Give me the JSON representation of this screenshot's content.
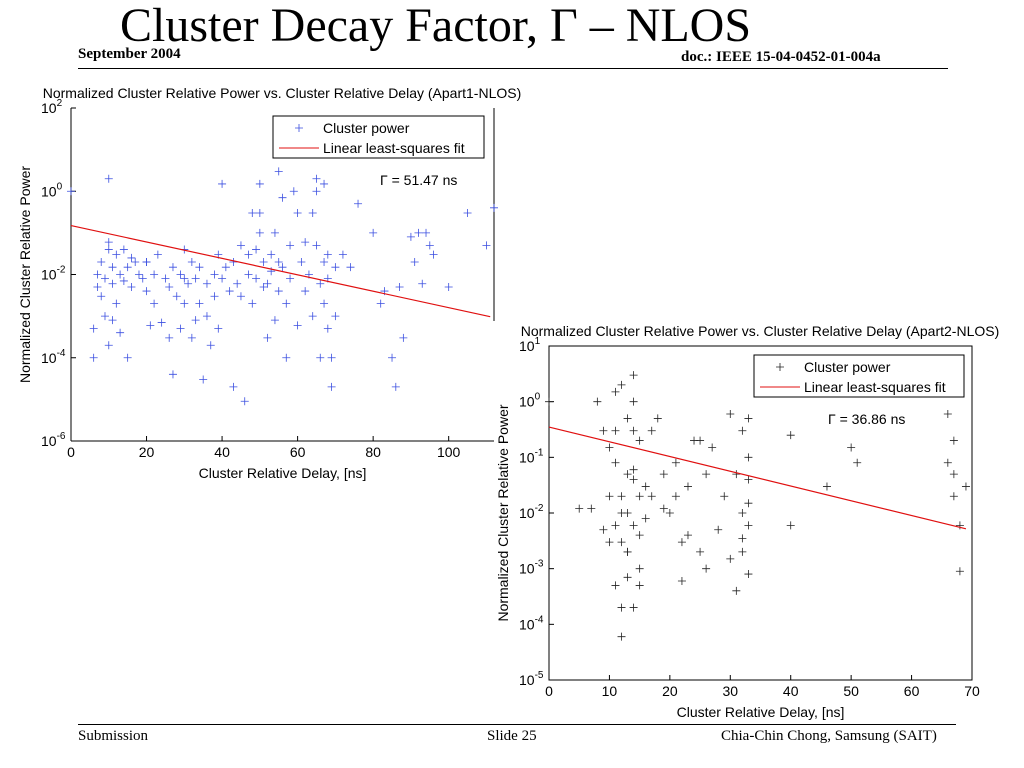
{
  "slide": {
    "title": "Cluster Decay Factor, Γ – NLOS",
    "date": "September 2004",
    "doc_id": "doc.: IEEE 15-04-0452-01-004a",
    "footer_left": "Submission",
    "footer_center": "Slide 25",
    "footer_right": "Chia-Chin Chong, Samsung (SAIT)"
  },
  "chart_data": [
    {
      "type": "scatter",
      "title": "Normalized Cluster Relative Power vs. Cluster Relative Delay (Apart1-NLOS)",
      "xlabel": "Cluster Relative Delay, [ns]",
      "ylabel": "Normalized Cluster Relative Power",
      "xlim": [
        0,
        112
      ],
      "ylim_log10": [
        -6,
        2
      ],
      "y_scale": "log",
      "x_ticks": [
        "0",
        "20",
        "40",
        "60",
        "80",
        "100"
      ],
      "y_tick_exponents": [
        "2",
        "0",
        "-2",
        "-4",
        "-6"
      ],
      "y_tick_base": "10",
      "legend_position": "top-right",
      "marker_color": "#3b4fe0",
      "fit_color": "#e01010",
      "annotation": "Γ = 51.47 ns",
      "series": [
        {
          "name": "Cluster power",
          "x": [
            0,
            6,
            6,
            7,
            7,
            8,
            8,
            9,
            9,
            10,
            10,
            10,
            11,
            11,
            11,
            12,
            12,
            13,
            13,
            14,
            14,
            15,
            15,
            16,
            16,
            17,
            18,
            19,
            20,
            20,
            21,
            22,
            22,
            23,
            24,
            25,
            26,
            26,
            27,
            27,
            28,
            29,
            29,
            30,
            30,
            31,
            32,
            32,
            33,
            33,
            34,
            34,
            35,
            36,
            36,
            37,
            38,
            38,
            39,
            39,
            40,
            40,
            41,
            42,
            43,
            43,
            44,
            45,
            45,
            46,
            47,
            47,
            48,
            48,
            49,
            49,
            50,
            50,
            51,
            51,
            52,
            52,
            53,
            53,
            54,
            54,
            55,
            55,
            55,
            56,
            56,
            57,
            57,
            58,
            58,
            59,
            60,
            60,
            61,
            62,
            62,
            63,
            64,
            64,
            65,
            65,
            66,
            66,
            67,
            67,
            67,
            68,
            68,
            69,
            69,
            70,
            70,
            72,
            74,
            76,
            80,
            82,
            83,
            85,
            86,
            87,
            88,
            90,
            91,
            92,
            93,
            94,
            95,
            96,
            100,
            105,
            110,
            112,
            10,
            20,
            30,
            50,
            65,
            68
          ],
          "y": [
            1.0,
            0.0005,
            0.0001,
            0.01,
            0.005,
            0.003,
            0.02,
            0.001,
            0.008,
            2.0,
            0.04,
            0.0002,
            0.006,
            0.015,
            0.0008,
            0.03,
            0.002,
            0.01,
            0.0004,
            0.04,
            0.007,
            0.015,
            0.0001,
            0.005,
            0.025,
            0.02,
            0.01,
            0.008,
            0.004,
            0.02,
            0.0006,
            0.01,
            0.002,
            0.03,
            0.0007,
            0.008,
            0.0003,
            0.005,
            0.015,
            4e-05,
            0.003,
            0.01,
            0.0005,
            0.04,
            0.002,
            0.006,
            0.02,
            0.0003,
            0.008,
            0.0008,
            0.002,
            0.015,
            3e-05,
            0.006,
            0.001,
            0.0002,
            0.01,
            0.003,
            0.0005,
            0.03,
            1.5,
            0.008,
            0.015,
            0.004,
            0.02,
            2e-05,
            0.006,
            0.05,
            0.003,
            9e-06,
            0.01,
            0.03,
            0.002,
            0.3,
            0.04,
            0.008,
            1.5,
            0.1,
            0.02,
            0.005,
            0.006,
            0.0003,
            0.03,
            0.012,
            0.0008,
            0.1,
            0.02,
            3.0,
            0.004,
            0.7,
            0.015,
            0.0001,
            0.002,
            0.05,
            0.008,
            1.0,
            0.3,
            0.0006,
            0.02,
            0.06,
            0.004,
            0.01,
            0.001,
            0.3,
            2.0,
            0.05,
            0.0001,
            0.006,
            0.002,
            0.02,
            1.5,
            0.0005,
            0.008,
            0.0001,
            2e-05,
            0.015,
            0.001,
            0.03,
            0.015,
            0.5,
            0.1,
            0.002,
            0.004,
            0.0001,
            2e-05,
            0.005,
            0.0003,
            0.08,
            0.02,
            0.1,
            0.006,
            0.1,
            0.05,
            0.03,
            0.005,
            0.3,
            0.05,
            0.4,
            0.06,
            0.02,
            0.008,
            0.3,
            1.0,
            0.03
          ],
          "color": "#3b4fe0"
        },
        {
          "name": "Linear least-squares fit",
          "x": [
            0,
            111
          ],
          "y": [
            0.15,
            0.00097
          ],
          "color": "#e01010"
        }
      ]
    },
    {
      "type": "scatter",
      "title": "Normalized Cluster Relative Power vs. Cluster Relative Delay (Apart2-NLOS)",
      "xlabel": "Cluster Relative Delay, [ns]",
      "ylabel": "Normalized Cluster Relative Power",
      "xlim": [
        0,
        70
      ],
      "ylim_log10": [
        -5,
        1
      ],
      "y_scale": "log",
      "x_ticks": [
        "0",
        "10",
        "20",
        "30",
        "40",
        "50",
        "60",
        "70"
      ],
      "y_tick_exponents": [
        "1",
        "0",
        "-1",
        "-2",
        "-3",
        "-4",
        "-5"
      ],
      "y_tick_base": "10",
      "legend_position": "top-right",
      "marker_color": "#222222",
      "fit_color": "#e01010",
      "annotation": "Γ = 36.86 ns",
      "series": [
        {
          "name": "Cluster power",
          "x": [
            0,
            5,
            7,
            8,
            9,
            9,
            10,
            10,
            10,
            11,
            11,
            11,
            11,
            12,
            12,
            12,
            12,
            12,
            13,
            13,
            13,
            13,
            13,
            14,
            14,
            14,
            14,
            14,
            14,
            15,
            15,
            15,
            15,
            16,
            16,
            17,
            17,
            18,
            19,
            19,
            20,
            21,
            22,
            22,
            23,
            23,
            24,
            25,
            26,
            26,
            27,
            28,
            29,
            30,
            30,
            31,
            31,
            32,
            32,
            32,
            33,
            33,
            33,
            33,
            33,
            33,
            40,
            40,
            46,
            50,
            51,
            66,
            66,
            67,
            67,
            67,
            68,
            68,
            69,
            12,
            14,
            11,
            13,
            15,
            21,
            25,
            32
          ],
          "y": [
            1.0,
            0.012,
            0.012,
            1.0,
            0.3,
            0.005,
            0.15,
            0.02,
            0.003,
            1.5,
            0.08,
            0.006,
            0.0005,
            2.0,
            0.02,
            0.003,
            0.0002,
            6e-05,
            0.5,
            0.05,
            0.01,
            0.002,
            0.0007,
            3.0,
            1.0,
            0.3,
            0.04,
            0.006,
            0.0002,
            0.2,
            0.02,
            0.004,
            0.001,
            0.03,
            0.008,
            0.3,
            0.02,
            0.5,
            0.05,
            0.012,
            0.01,
            0.08,
            0.003,
            0.0006,
            0.03,
            0.004,
            0.2,
            0.002,
            0.05,
            0.001,
            0.15,
            0.005,
            0.02,
            0.0015,
            0.6,
            0.0004,
            0.05,
            0.3,
            0.01,
            0.002,
            0.5,
            0.1,
            0.04,
            0.015,
            0.006,
            0.0008,
            0.25,
            0.006,
            0.03,
            0.15,
            0.08,
            0.6,
            0.08,
            0.05,
            0.02,
            0.2,
            0.006,
            0.0009,
            0.03,
            0.01,
            0.06,
            0.3,
            0.002,
            0.0005,
            0.02,
            0.2,
            0.0035
          ],
          "color": "#222222"
        },
        {
          "name": "Linear least-squares fit",
          "x": [
            0,
            69
          ],
          "y": [
            0.35,
            0.0052
          ],
          "color": "#e01010"
        }
      ]
    }
  ]
}
